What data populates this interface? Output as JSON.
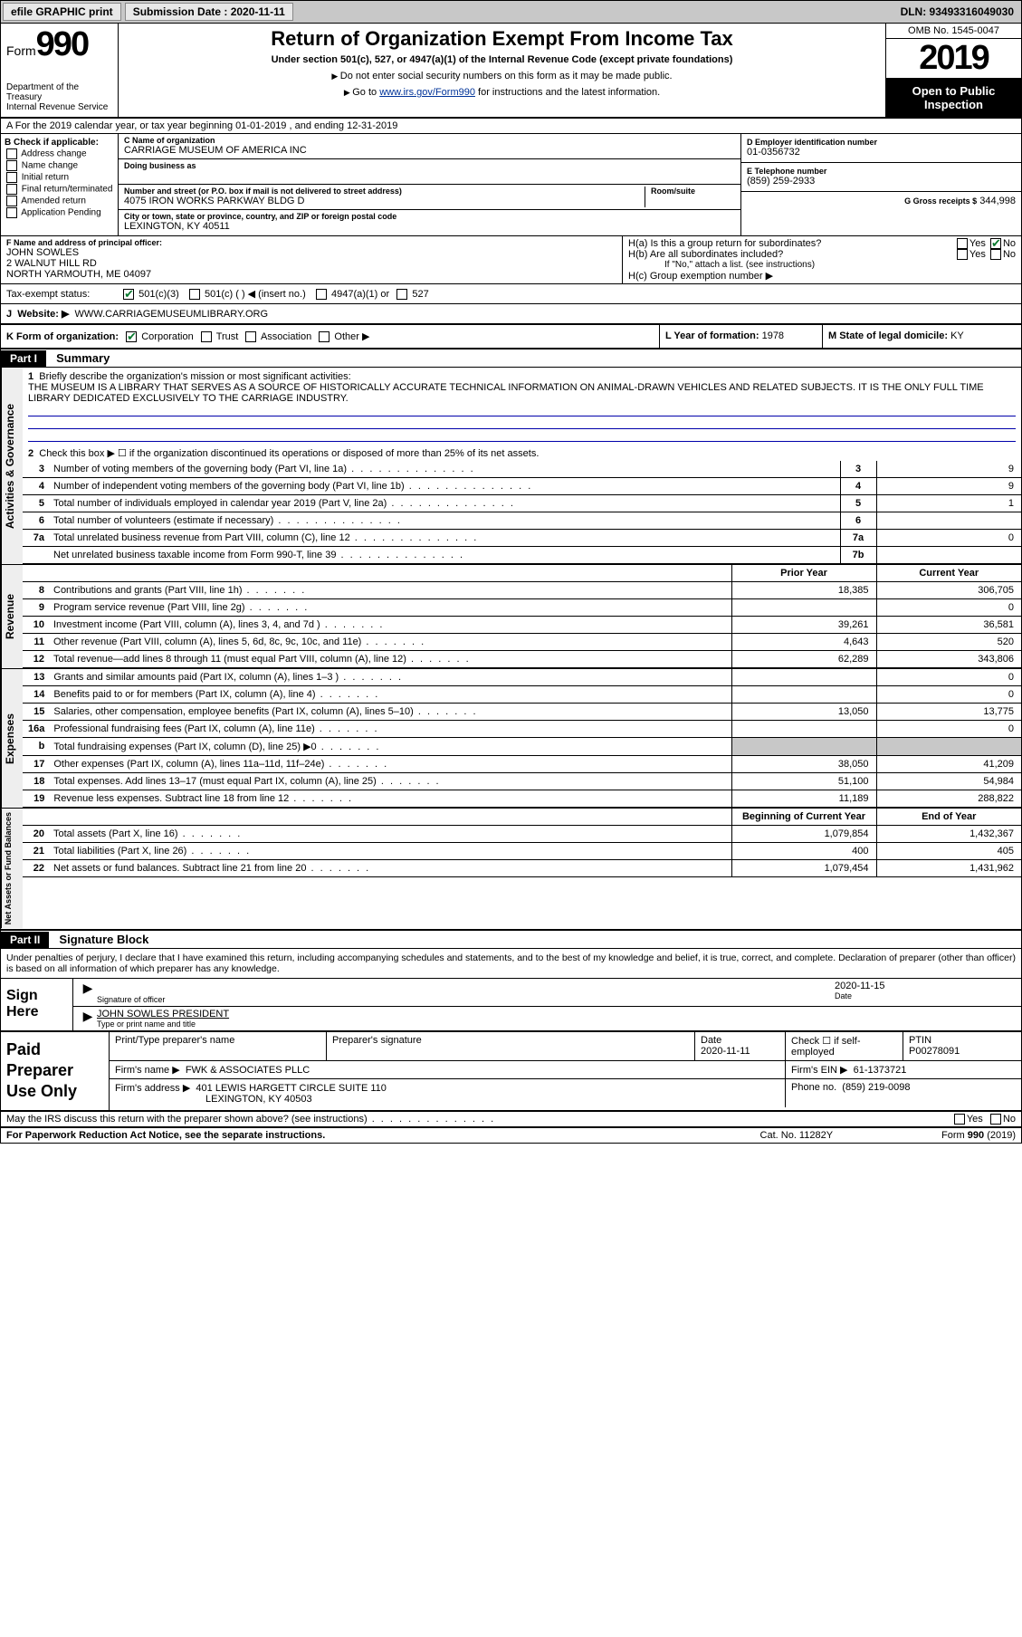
{
  "topbar": {
    "efile": "efile GRAPHIC print",
    "submission_label": "Submission Date : 2020-11-11",
    "dln": "DLN: 93493316049030"
  },
  "header": {
    "form_prefix": "Form",
    "form_number": "990",
    "dept": "Department of the Treasury\nInternal Revenue Service",
    "title": "Return of Organization Exempt From Income Tax",
    "subtitle": "Under section 501(c), 527, or 4947(a)(1) of the Internal Revenue Code (except private foundations)",
    "note1": "Do not enter social security numbers on this form as it may be made public.",
    "note2_pre": "Go to ",
    "note2_link": "www.irs.gov/Form990",
    "note2_post": " for instructions and the latest information.",
    "omb": "OMB No. 1545-0047",
    "year": "2019",
    "inspection": "Open to Public Inspection"
  },
  "line_a": "A For the 2019 calendar year, or tax year beginning 01-01-2019    , and ending 12-31-2019",
  "box_b": {
    "label": "B Check if applicable:",
    "opts": [
      "Address change",
      "Name change",
      "Initial return",
      "Final return/terminated",
      "Amended return",
      "Application Pending"
    ]
  },
  "box_c": {
    "name_label": "C Name of organization",
    "name": "CARRIAGE MUSEUM OF AMERICA INC",
    "dba_label": "Doing business as",
    "dba": "",
    "addr_label": "Number and street (or P.O. box if mail is not delivered to street address)",
    "room_label": "Room/suite",
    "addr": "4075 IRON WORKS PARKWAY BLDG D",
    "city_label": "City or town, state or province, country, and ZIP or foreign postal code",
    "city": "LEXINGTON, KY  40511"
  },
  "box_d": {
    "label": "D Employer identification number",
    "value": "01-0356732"
  },
  "box_e": {
    "label": "E Telephone number",
    "value": "(859) 259-2933"
  },
  "box_g": {
    "label": "G Gross receipts $",
    "value": "344,998"
  },
  "box_f": {
    "label": "F  Name and address of principal officer:",
    "name": "JOHN SOWLES",
    "addr1": "2 WALNUT HILL RD",
    "addr2": "NORTH YARMOUTH, ME  04097"
  },
  "box_h": {
    "ha": "H(a)  Is this a group return for subordinates?",
    "hb": "H(b)  Are all subordinates included?",
    "hb_note": "If \"No,\" attach a list. (see instructions)",
    "hc": "H(c)  Group exemption number ▶",
    "yes": "Yes",
    "no": "No"
  },
  "tax_status": {
    "label": "Tax-exempt status:",
    "opt1": "501(c)(3)",
    "opt2": "501(c) (  ) ◀ (insert no.)",
    "opt3": "4947(a)(1) or",
    "opt4": "527"
  },
  "box_j": {
    "label": "J",
    "text": "Website: ▶",
    "value": "WWW.CARRIAGEMUSEUMLIBRARY.ORG"
  },
  "box_k": {
    "label": "K Form of organization:",
    "opts": [
      "Corporation",
      "Trust",
      "Association",
      "Other ▶"
    ]
  },
  "box_l": {
    "label": "L Year of formation:",
    "value": "1978"
  },
  "box_m": {
    "label": "M State of legal domicile:",
    "value": "KY"
  },
  "part1": {
    "header": "Part I",
    "title": "Summary",
    "q1_label": "1",
    "q1": "Briefly describe the organization's mission or most significant activities:",
    "q1_desc": "THE MUSEUM IS A LIBRARY THAT SERVES AS A SOURCE OF HISTORICALLY ACCURATE TECHNICAL INFORMATION ON ANIMAL-DRAWN VEHICLES AND RELATED SUBJECTS. IT IS THE ONLY FULL TIME LIBRARY DEDICATED EXCLUSIVELY TO THE CARRIAGE INDUSTRY.",
    "q2": "Check this box ▶ ☐  if the organization discontinued its operations or disposed of more than 25% of its net assets.",
    "rows_gov": [
      {
        "n": "3",
        "t": "Number of voting members of the governing body (Part VI, line 1a)",
        "box": "3",
        "v": "9"
      },
      {
        "n": "4",
        "t": "Number of independent voting members of the governing body (Part VI, line 1b)",
        "box": "4",
        "v": "9"
      },
      {
        "n": "5",
        "t": "Total number of individuals employed in calendar year 2019 (Part V, line 2a)",
        "box": "5",
        "v": "1"
      },
      {
        "n": "6",
        "t": "Total number of volunteers (estimate if necessary)",
        "box": "6",
        "v": ""
      },
      {
        "n": "7a",
        "t": "Total unrelated business revenue from Part VIII, column (C), line 12",
        "box": "7a",
        "v": "0"
      },
      {
        "n": "",
        "t": "Net unrelated business taxable income from Form 990-T, line 39",
        "box": "7b",
        "v": ""
      }
    ],
    "prior_label": "Prior Year",
    "current_label": "Current Year",
    "rows_rev": [
      {
        "n": "8",
        "t": "Contributions and grants (Part VIII, line 1h)",
        "p": "18,385",
        "c": "306,705"
      },
      {
        "n": "9",
        "t": "Program service revenue (Part VIII, line 2g)",
        "p": "",
        "c": "0"
      },
      {
        "n": "10",
        "t": "Investment income (Part VIII, column (A), lines 3, 4, and 7d )",
        "p": "39,261",
        "c": "36,581"
      },
      {
        "n": "11",
        "t": "Other revenue (Part VIII, column (A), lines 5, 6d, 8c, 9c, 10c, and 11e)",
        "p": "4,643",
        "c": "520"
      },
      {
        "n": "12",
        "t": "Total revenue—add lines 8 through 11 (must equal Part VIII, column (A), line 12)",
        "p": "62,289",
        "c": "343,806"
      }
    ],
    "rows_exp": [
      {
        "n": "13",
        "t": "Grants and similar amounts paid (Part IX, column (A), lines 1–3 )",
        "p": "",
        "c": "0"
      },
      {
        "n": "14",
        "t": "Benefits paid to or for members (Part IX, column (A), line 4)",
        "p": "",
        "c": "0"
      },
      {
        "n": "15",
        "t": "Salaries, other compensation, employee benefits (Part IX, column (A), lines 5–10)",
        "p": "13,050",
        "c": "13,775"
      },
      {
        "n": "16a",
        "t": "Professional fundraising fees (Part IX, column (A), line 11e)",
        "p": "",
        "c": "0"
      },
      {
        "n": "b",
        "t": "Total fundraising expenses (Part IX, column (D), line 25) ▶0",
        "p": "SHADE",
        "c": "SHADE"
      },
      {
        "n": "17",
        "t": "Other expenses (Part IX, column (A), lines 11a–11d, 11f–24e)",
        "p": "38,050",
        "c": "41,209"
      },
      {
        "n": "18",
        "t": "Total expenses. Add lines 13–17 (must equal Part IX, column (A), line 25)",
        "p": "51,100",
        "c": "54,984"
      },
      {
        "n": "19",
        "t": "Revenue less expenses. Subtract line 18 from line 12",
        "p": "11,189",
        "c": "288,822"
      }
    ],
    "boy_label": "Beginning of Current Year",
    "eoy_label": "End of Year",
    "rows_net": [
      {
        "n": "20",
        "t": "Total assets (Part X, line 16)",
        "p": "1,079,854",
        "c": "1,432,367"
      },
      {
        "n": "21",
        "t": "Total liabilities (Part X, line 26)",
        "p": "400",
        "c": "405"
      },
      {
        "n": "22",
        "t": "Net assets or fund balances. Subtract line 21 from line 20",
        "p": "1,079,454",
        "c": "1,431,962"
      }
    ],
    "tab_gov": "Activities & Governance",
    "tab_rev": "Revenue",
    "tab_exp": "Expenses",
    "tab_net": "Net Assets or Fund Balances"
  },
  "part2": {
    "header": "Part II",
    "title": "Signature Block",
    "declaration": "Under penalties of perjury, I declare that I have examined this return, including accompanying schedules and statements, and to the best of my knowledge and belief, it is true, correct, and complete. Declaration of preparer (other than officer) is based on all information of which preparer has any knowledge.",
    "sign_here": "Sign Here",
    "sig_officer": "Signature of officer",
    "sig_date_label": "Date",
    "sig_date": "2020-11-15",
    "sig_name": "JOHN SOWLES PRESIDENT",
    "sig_name_label": "Type or print name and title",
    "paid": "Paid Preparer Use Only",
    "prep_name_label": "Print/Type preparer's name",
    "prep_name": "",
    "prep_sig_label": "Preparer's signature",
    "prep_date_label": "Date",
    "prep_date": "2020-11-11",
    "prep_self": "Check ☐ if self-employed",
    "ptin_label": "PTIN",
    "ptin": "P00278091",
    "firm_name_label": "Firm's name     ▶",
    "firm_name": "FWK & ASSOCIATES PLLC",
    "firm_ein_label": "Firm's EIN ▶",
    "firm_ein": "61-1373721",
    "firm_addr_label": "Firm's address ▶",
    "firm_addr": "401 LEWIS HARGETT CIRCLE SUITE 110",
    "firm_city": "LEXINGTON, KY  40503",
    "firm_phone_label": "Phone no.",
    "firm_phone": "(859) 219-0098",
    "discuss": "May the IRS discuss this return with the preparer shown above? (see instructions)",
    "yes": "Yes",
    "no": "No"
  },
  "footer": {
    "left": "For Paperwork Reduction Act Notice, see the separate instructions.",
    "mid": "Cat. No. 11282Y",
    "right": "Form 990 (2019)"
  }
}
